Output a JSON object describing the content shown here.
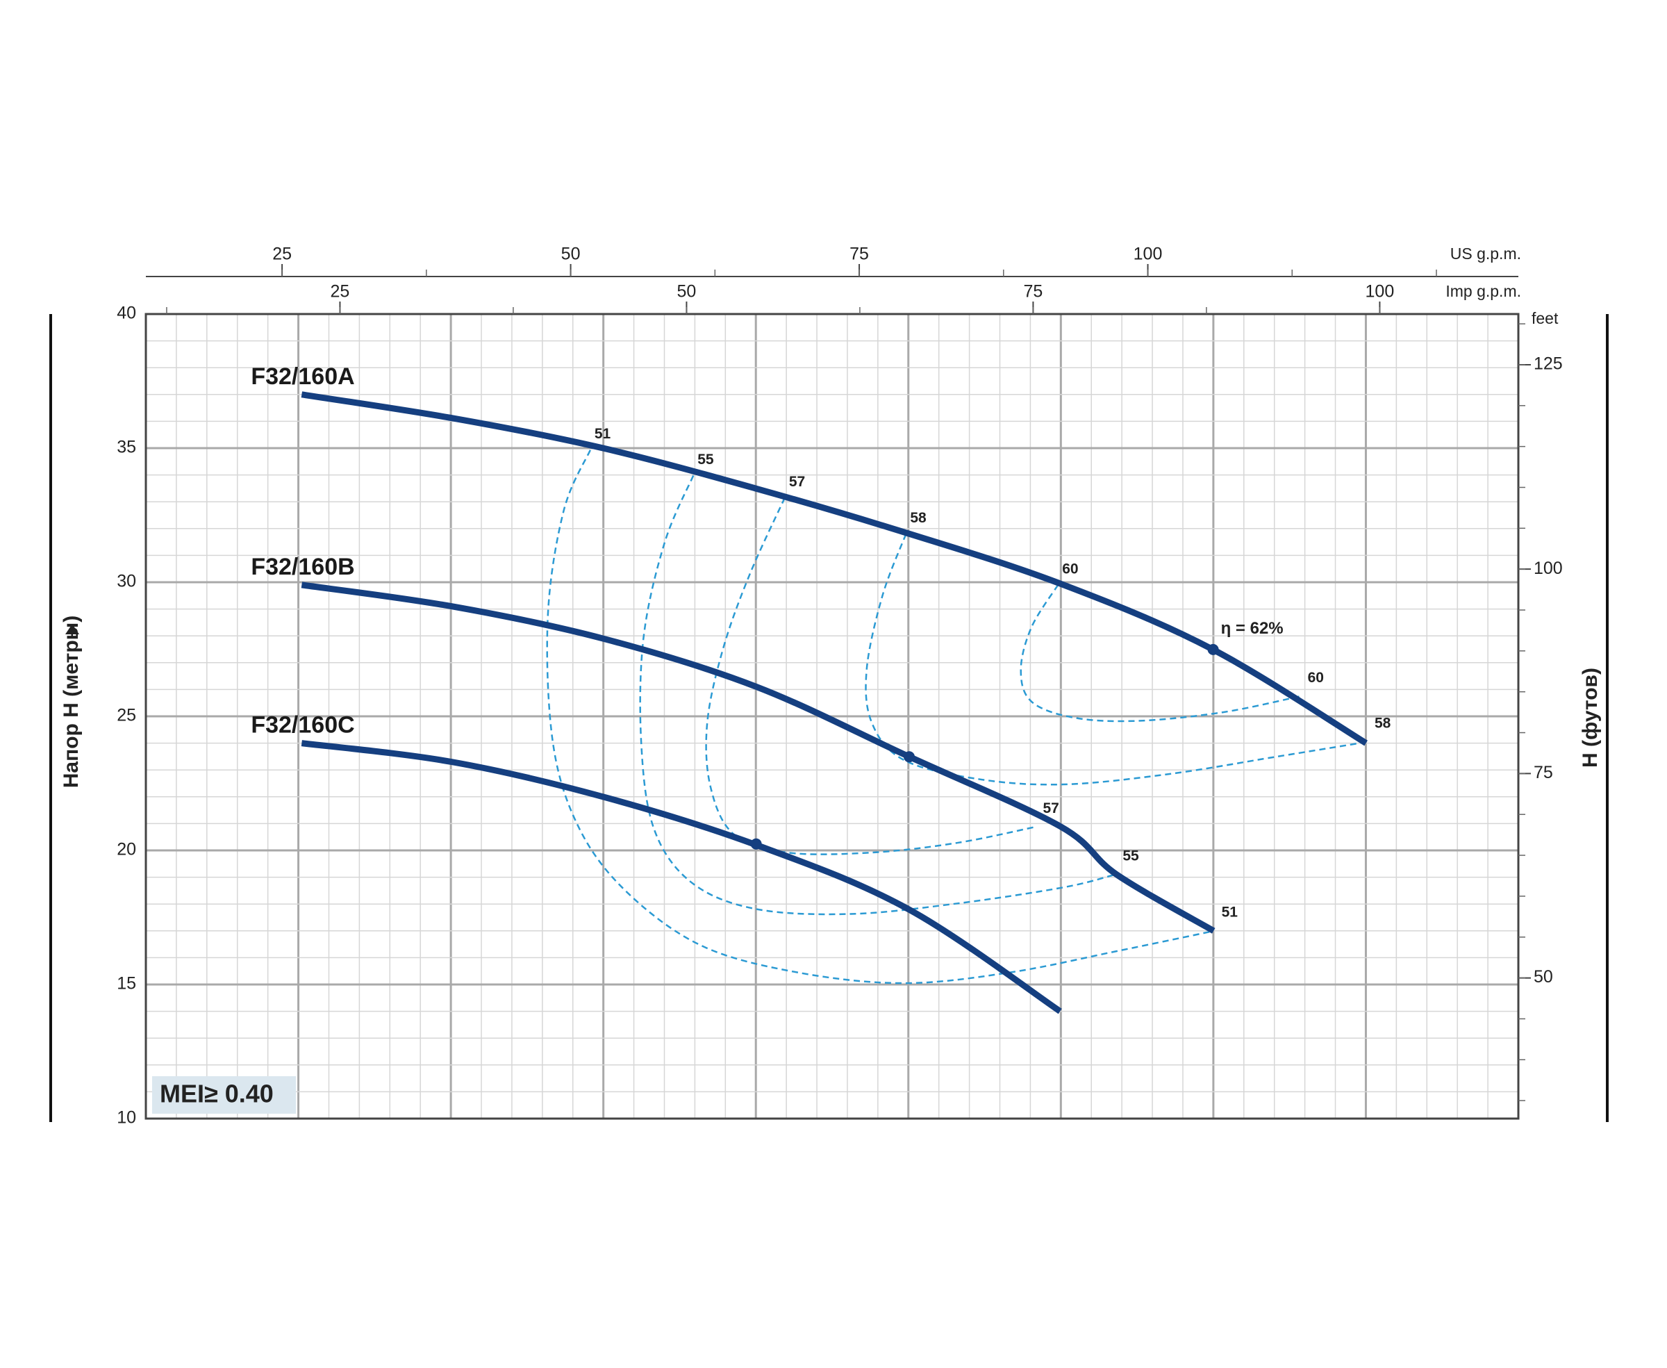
{
  "chart_data": {
    "type": "line",
    "x_axis_label": "US g.p.m.",
    "x2_axis_label": "Imp g.p.m.",
    "y_axis_label": "Напор H (метры)",
    "y2_axis_label": "H (футов)",
    "y2_unit": "feet",
    "xlim": [
      13.2,
      132.1
    ],
    "xticks": [
      25,
      50,
      75,
      100
    ],
    "x2lim": [
      11.0,
      110.0
    ],
    "x2ticks": [
      25,
      50,
      75,
      100
    ],
    "ylim": [
      10,
      40
    ],
    "yticks": [
      10,
      15,
      20,
      25,
      30,
      35,
      40
    ],
    "y2lim": [
      32.8,
      131.2
    ],
    "y2ticks": [
      50,
      75,
      100,
      125
    ],
    "grid": true,
    "series": [
      {
        "name": "F32/160A",
        "color": "#153f80",
        "x": [
          26.7,
          40.0,
          52.8,
          66.0,
          79.0,
          92.4,
          105.6,
          118.9
        ],
        "values": [
          37.0,
          36.1,
          35.0,
          33.5,
          31.85,
          29.95,
          27.5,
          24.0
        ]
      },
      {
        "name": "F32/160B",
        "color": "#153f80",
        "x": [
          26.7,
          39.7,
          52.8,
          66.1,
          79.3,
          92.4,
          97.3,
          105.7
        ],
        "values": [
          29.9,
          29.1,
          27.9,
          26.1,
          23.5,
          20.9,
          19.1,
          17.0
        ]
      },
      {
        "name": "F32/160C",
        "color": "#153f80",
        "x": [
          26.7,
          39.7,
          52.8,
          66.1,
          79.3,
          92.4
        ],
        "values": [
          24.0,
          23.3,
          22.0,
          20.2,
          17.8,
          14.0
        ]
      }
    ],
    "efficiency_curves": [
      {
        "name": "51",
        "color": "#2b9ad3",
        "x": [
          51.7,
          49.4,
          48.02,
          48.48,
          50.78,
          54.93,
          61.37,
          69.66,
          78.87,
          88.07,
          97.28,
          105.66
        ],
        "values": [
          34.93,
          32.67,
          28.71,
          23.96,
          20.79,
          18.42,
          16.44,
          15.45,
          15.05,
          15.45,
          16.24,
          16.99
        ]
      },
      {
        "name": "55",
        "color": "#2b9ad3",
        "x": [
          60.63,
          58.15,
          56.31,
          56.12,
          57.23,
          60.45,
          65.98,
          74.26,
          83.47,
          92.68,
          97.1
        ],
        "values": [
          33.98,
          31.49,
          27.92,
          23.96,
          20.79,
          18.81,
          17.82,
          17.63,
          18.02,
          18.62,
          19.09
        ]
      },
      {
        "name": "57",
        "color": "#2b9ad3",
        "x": [
          68.55,
          65.52,
          63.21,
          61.83,
          62.11,
          64.13,
          68.74,
          76.11,
          83.47,
          90.19
        ],
        "values": [
          33.15,
          30.3,
          27.53,
          24.75,
          22.38,
          20.6,
          19.92,
          19.92,
          20.28,
          20.87
        ]
      },
      {
        "name": "58",
        "color": "#2b9ad3",
        "x": [
          79.05,
          77.02,
          75.64,
          76.1,
          78.87,
          85.31,
          92.68,
          101.88,
          111.09,
          118.92
        ],
        "values": [
          31.8,
          29.51,
          26.73,
          24.75,
          23.37,
          22.66,
          22.46,
          22.85,
          23.49,
          24.04
        ]
      },
      {
        "name": "60",
        "color": "#2b9ad3",
        "x": [
          92.22,
          89.92,
          89.0,
          89.92,
          93.6,
          99.13,
          106.49,
          113.12
        ],
        "values": [
          29.9,
          28.32,
          26.73,
          25.55,
          24.95,
          24.83,
          25.15,
          25.74
        ]
      }
    ],
    "marked_points": {
      "x": [
        105.66,
        79.33,
        66.07
      ],
      "values": [
        27.49,
        23.49,
        20.24
      ]
    },
    "peak_label": "η = 62%",
    "badge": "MEI≥ 0.40"
  }
}
